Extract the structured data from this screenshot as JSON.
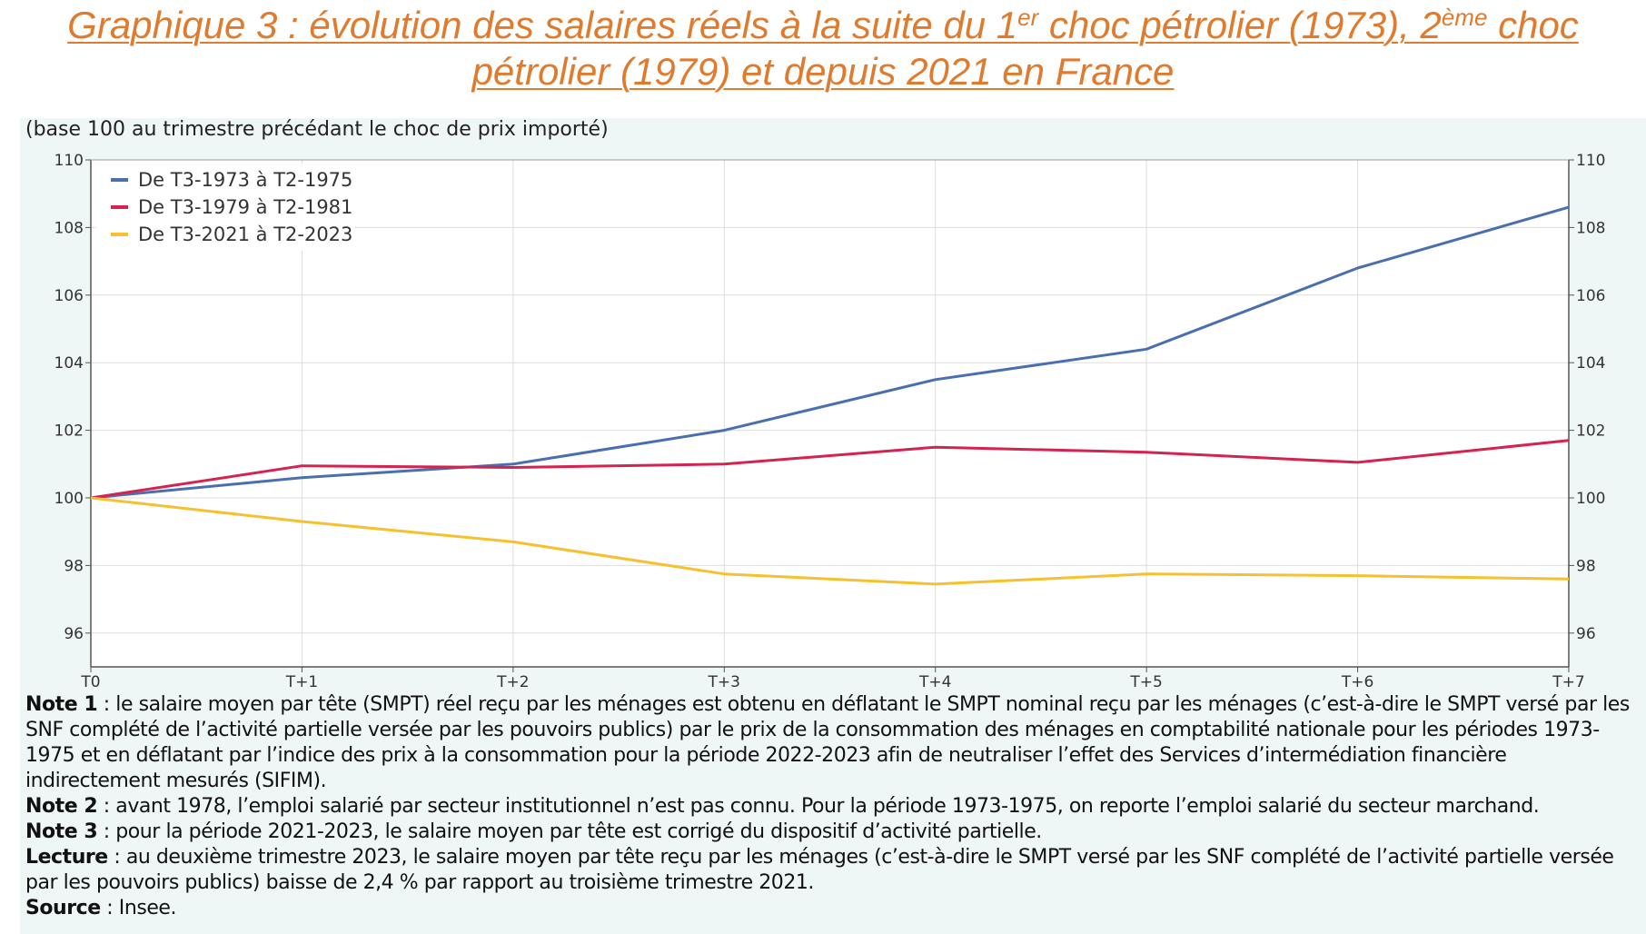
{
  "title": {
    "line1_a": "Graphique 3 : évolution des salaires réels à la suite du 1",
    "line1_sup1": "er",
    "line1_b": " choc pétrolier (1973), 2",
    "line1_sup2": "ème",
    "line1_c": " choc",
    "line2": "pétrolier (1979) et depuis 2021 en France"
  },
  "subtitle": "(base 100 au trimestre précédant le choc de prix importé)",
  "colors": {
    "title": "#e07b2e",
    "panel_bg": "#eef6f6",
    "grid": "#dddddd"
  },
  "chart_data": {
    "type": "line",
    "categories": [
      "T0",
      "T+1",
      "T+2",
      "T+3",
      "T+4",
      "T+5",
      "T+6",
      "T+7"
    ],
    "ylim": [
      95,
      110
    ],
    "yticks": [
      96,
      98,
      100,
      102,
      104,
      106,
      108,
      110
    ],
    "grid": true,
    "legend_position": "top-left",
    "secondary_y_axis": true,
    "series": [
      {
        "name": "De T3-1973 à T2-1975",
        "color": "#4a6fb0",
        "values": [
          100,
          100.6,
          101.0,
          102.0,
          103.5,
          104.4,
          106.8,
          108.6
        ]
      },
      {
        "name": "De T3-1979 à T2-1981",
        "color": "#d5234f",
        "values": [
          100,
          100.95,
          100.9,
          101.0,
          101.5,
          101.35,
          101.05,
          101.7
        ]
      },
      {
        "name": "De T3-2021 à T2-2023",
        "color": "#f6c02e",
        "values": [
          100,
          99.3,
          98.7,
          97.75,
          97.45,
          97.75,
          97.7,
          97.6
        ]
      }
    ]
  },
  "notes": {
    "note1_label": "Note 1",
    "note1_text": " : le salaire moyen par tête (SMPT) réel reçu par les ménages est obtenu en déflatant le SMPT nominal reçu par les ménages (c’est-à-dire le SMPT versé par les SNF complété de l’activité partielle versée par les pouvoirs publics) par le prix de la consommation des ménages en comptabilité nationale pour les périodes 1973-1975 et en déflatant par l’indice des prix à la consommation pour la période 2022-2023 afin de neutraliser l’effet des Services d’intermédiation financière indirectement mesurés (SIFIM).",
    "note2_label": "Note 2",
    "note2_text": " : avant 1978, l’emploi salarié par secteur institutionnel n’est pas connu. Pour la période 1973-1975, on reporte l’emploi salarié du secteur marchand.",
    "note3_label": "Note 3",
    "note3_text": " : pour la période 2021-2023, le salaire moyen par tête est corrigé du dispositif d’activité partielle.",
    "lecture_label": "Lecture",
    "lecture_text": " : au deuxième trimestre 2023, le salaire moyen par tête reçu par les ménages (c’est-à-dire le SMPT versé par les SNF complété de l’activité partielle versée par les pouvoirs publics) baisse de 2,4  % par rapport au troisième trimestre 2021.",
    "source_label": "Source",
    "source_text": " : Insee."
  }
}
